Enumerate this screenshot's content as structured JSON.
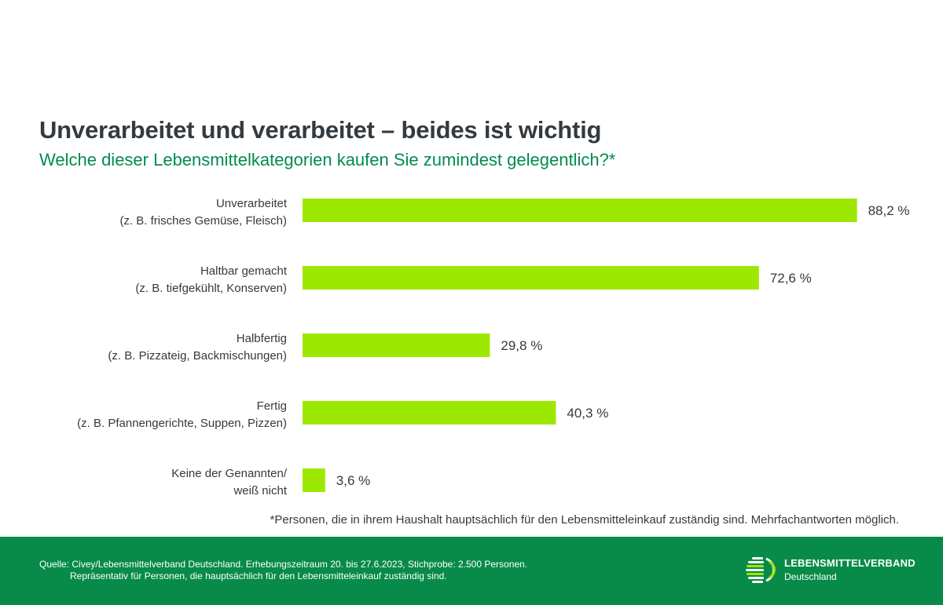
{
  "title": "Unverarbeitet und verarbeitet – beides ist wichtig",
  "subtitle": "Welche dieser Lebensmittelkategorien kaufen Sie zumindest gelegentlich?*",
  "footnote": "*Personen, die in ihrem Haushalt hauptsächlich für den Lebensmitteleinkauf zuständig sind. Mehrfachantworten möglich.",
  "source": {
    "line1": "Quelle: Civey/Lebensmittelverband Deutschland. Erhebungszeitraum 20. bis 27.6.2023, Stichprobe: 2.500 Personen.",
    "line2": "Repräsentativ für Personen, die hauptsächlich für den Lebensmitteleinkauf zuständig sind."
  },
  "brand": {
    "name": "LEBENSMITTELVERBAND",
    "sub": "Deutschland"
  },
  "colors": {
    "bar": "#9de800",
    "title": "#333a40",
    "subtitle": "#008c4f",
    "footer": "#088b48"
  },
  "chart_data": {
    "type": "bar",
    "orientation": "horizontal",
    "unit": "%",
    "xlim": [
      0,
      100
    ],
    "categories": [
      [
        "Unverarbeitet",
        "(z. B. frisches Gemüse, Fleisch)"
      ],
      [
        "Haltbar gemacht",
        "(z. B. tiefgekühlt, Konserven)"
      ],
      [
        "Halbfertig",
        "(z. B. Pizzateig, Backmischungen)"
      ],
      [
        "Fertig",
        "(z. B. Pfannengerichte, Suppen, Pizzen)"
      ],
      [
        "Keine der Genannten/",
        "weiß nicht"
      ]
    ],
    "values": [
      88.2,
      72.6,
      29.8,
      40.3,
      3.6
    ],
    "value_labels": [
      "88,2 %",
      "72,6 %",
      "29,8 %",
      "40,3 %",
      "3,6 %"
    ]
  }
}
